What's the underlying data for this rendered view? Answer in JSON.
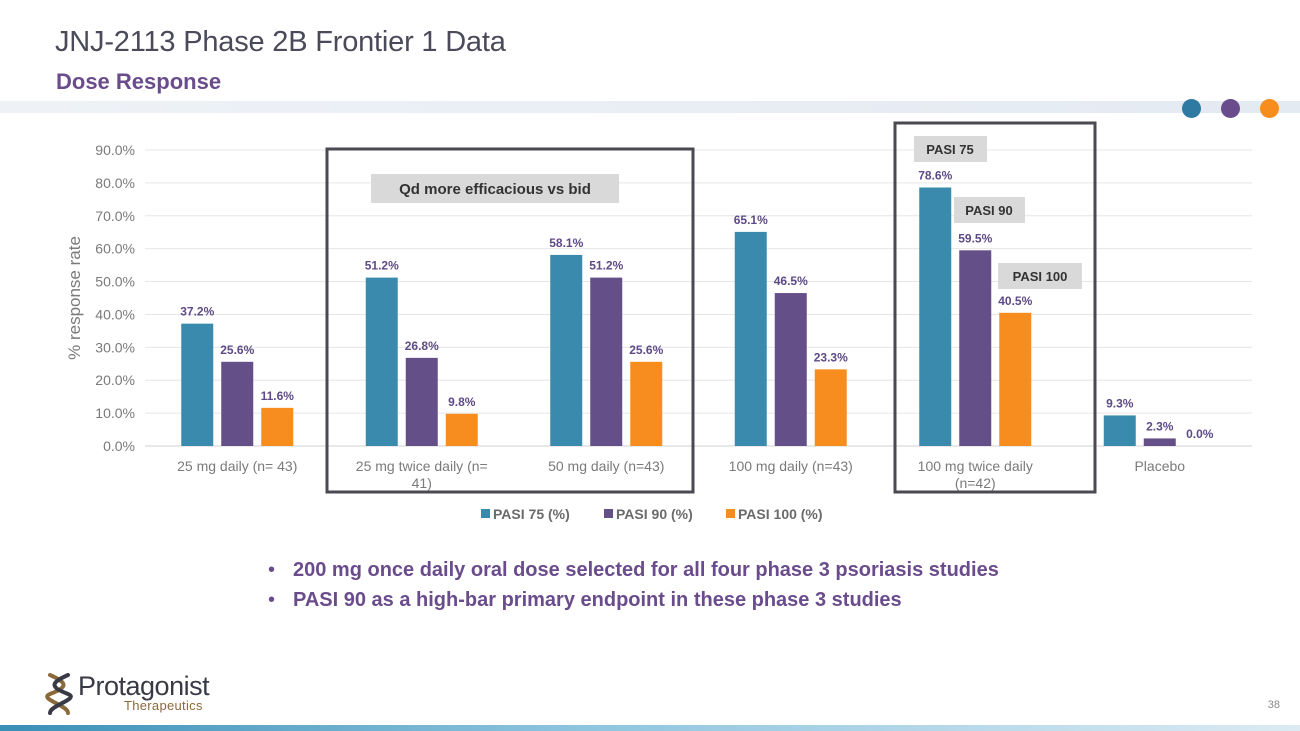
{
  "slide": {
    "title": "JNJ-2113 Phase 2B Frontier 1 Data",
    "subtitle": "Dose Response",
    "page_number": "38"
  },
  "colors": {
    "pasi75": "#3a8aad",
    "pasi90": "#654f88",
    "pasi100": "#f68d1e",
    "dot1": "#2e7aa3",
    "dot2": "#6a4c8c",
    "dot3": "#f68d1e"
  },
  "chart_data": {
    "type": "bar",
    "ylabel": "% response rate",
    "ylim": [
      0,
      90
    ],
    "yticks": [
      "0.0%",
      "10.0%",
      "20.0%",
      "30.0%",
      "40.0%",
      "50.0%",
      "60.0%",
      "70.0%",
      "80.0%",
      "90.0%"
    ],
    "grid": true,
    "legend_position": "bottom",
    "categories": [
      "25 mg daily (n= 43)",
      "25 mg twice daily (n= 41)",
      "50 mg daily (n=43)",
      "100 mg daily (n=43)",
      "100 mg twice daily (n=42)",
      "Placebo"
    ],
    "series": [
      {
        "name": "PASI 75 (%)",
        "values": [
          37.2,
          51.2,
          58.1,
          65.1,
          78.6,
          9.3
        ],
        "labels": [
          "37.2%",
          "51.2%",
          "58.1%",
          "65.1%",
          "78.6%",
          "9.3%"
        ]
      },
      {
        "name": "PASI 90 (%)",
        "values": [
          25.6,
          26.8,
          51.2,
          46.5,
          59.5,
          2.3
        ],
        "labels": [
          "25.6%",
          "26.8%",
          "51.2%",
          "46.5%",
          "59.5%",
          "2.3%"
        ]
      },
      {
        "name": "PASI 100 (%)",
        "values": [
          11.6,
          9.8,
          25.6,
          23.3,
          40.5,
          0.0
        ],
        "labels": [
          "11.6%",
          "9.8%",
          "25.6%",
          "23.3%",
          "40.5%",
          "0.0%"
        ]
      }
    ],
    "annotations": {
      "qd_callout": "Qd more efficacious vs bid",
      "pasi75_callout": "PASI 75",
      "pasi90_callout": "PASI 90",
      "pasi100_callout": "PASI 100"
    }
  },
  "bullets": [
    "200 mg once daily oral dose selected for all four phase 3 psoriasis studies",
    "PASI 90 as a high-bar primary endpoint in these phase 3 studies"
  ],
  "bullet_symbol": "•",
  "logo": {
    "name": "Protagonist",
    "tagline": "Therapeutics"
  }
}
